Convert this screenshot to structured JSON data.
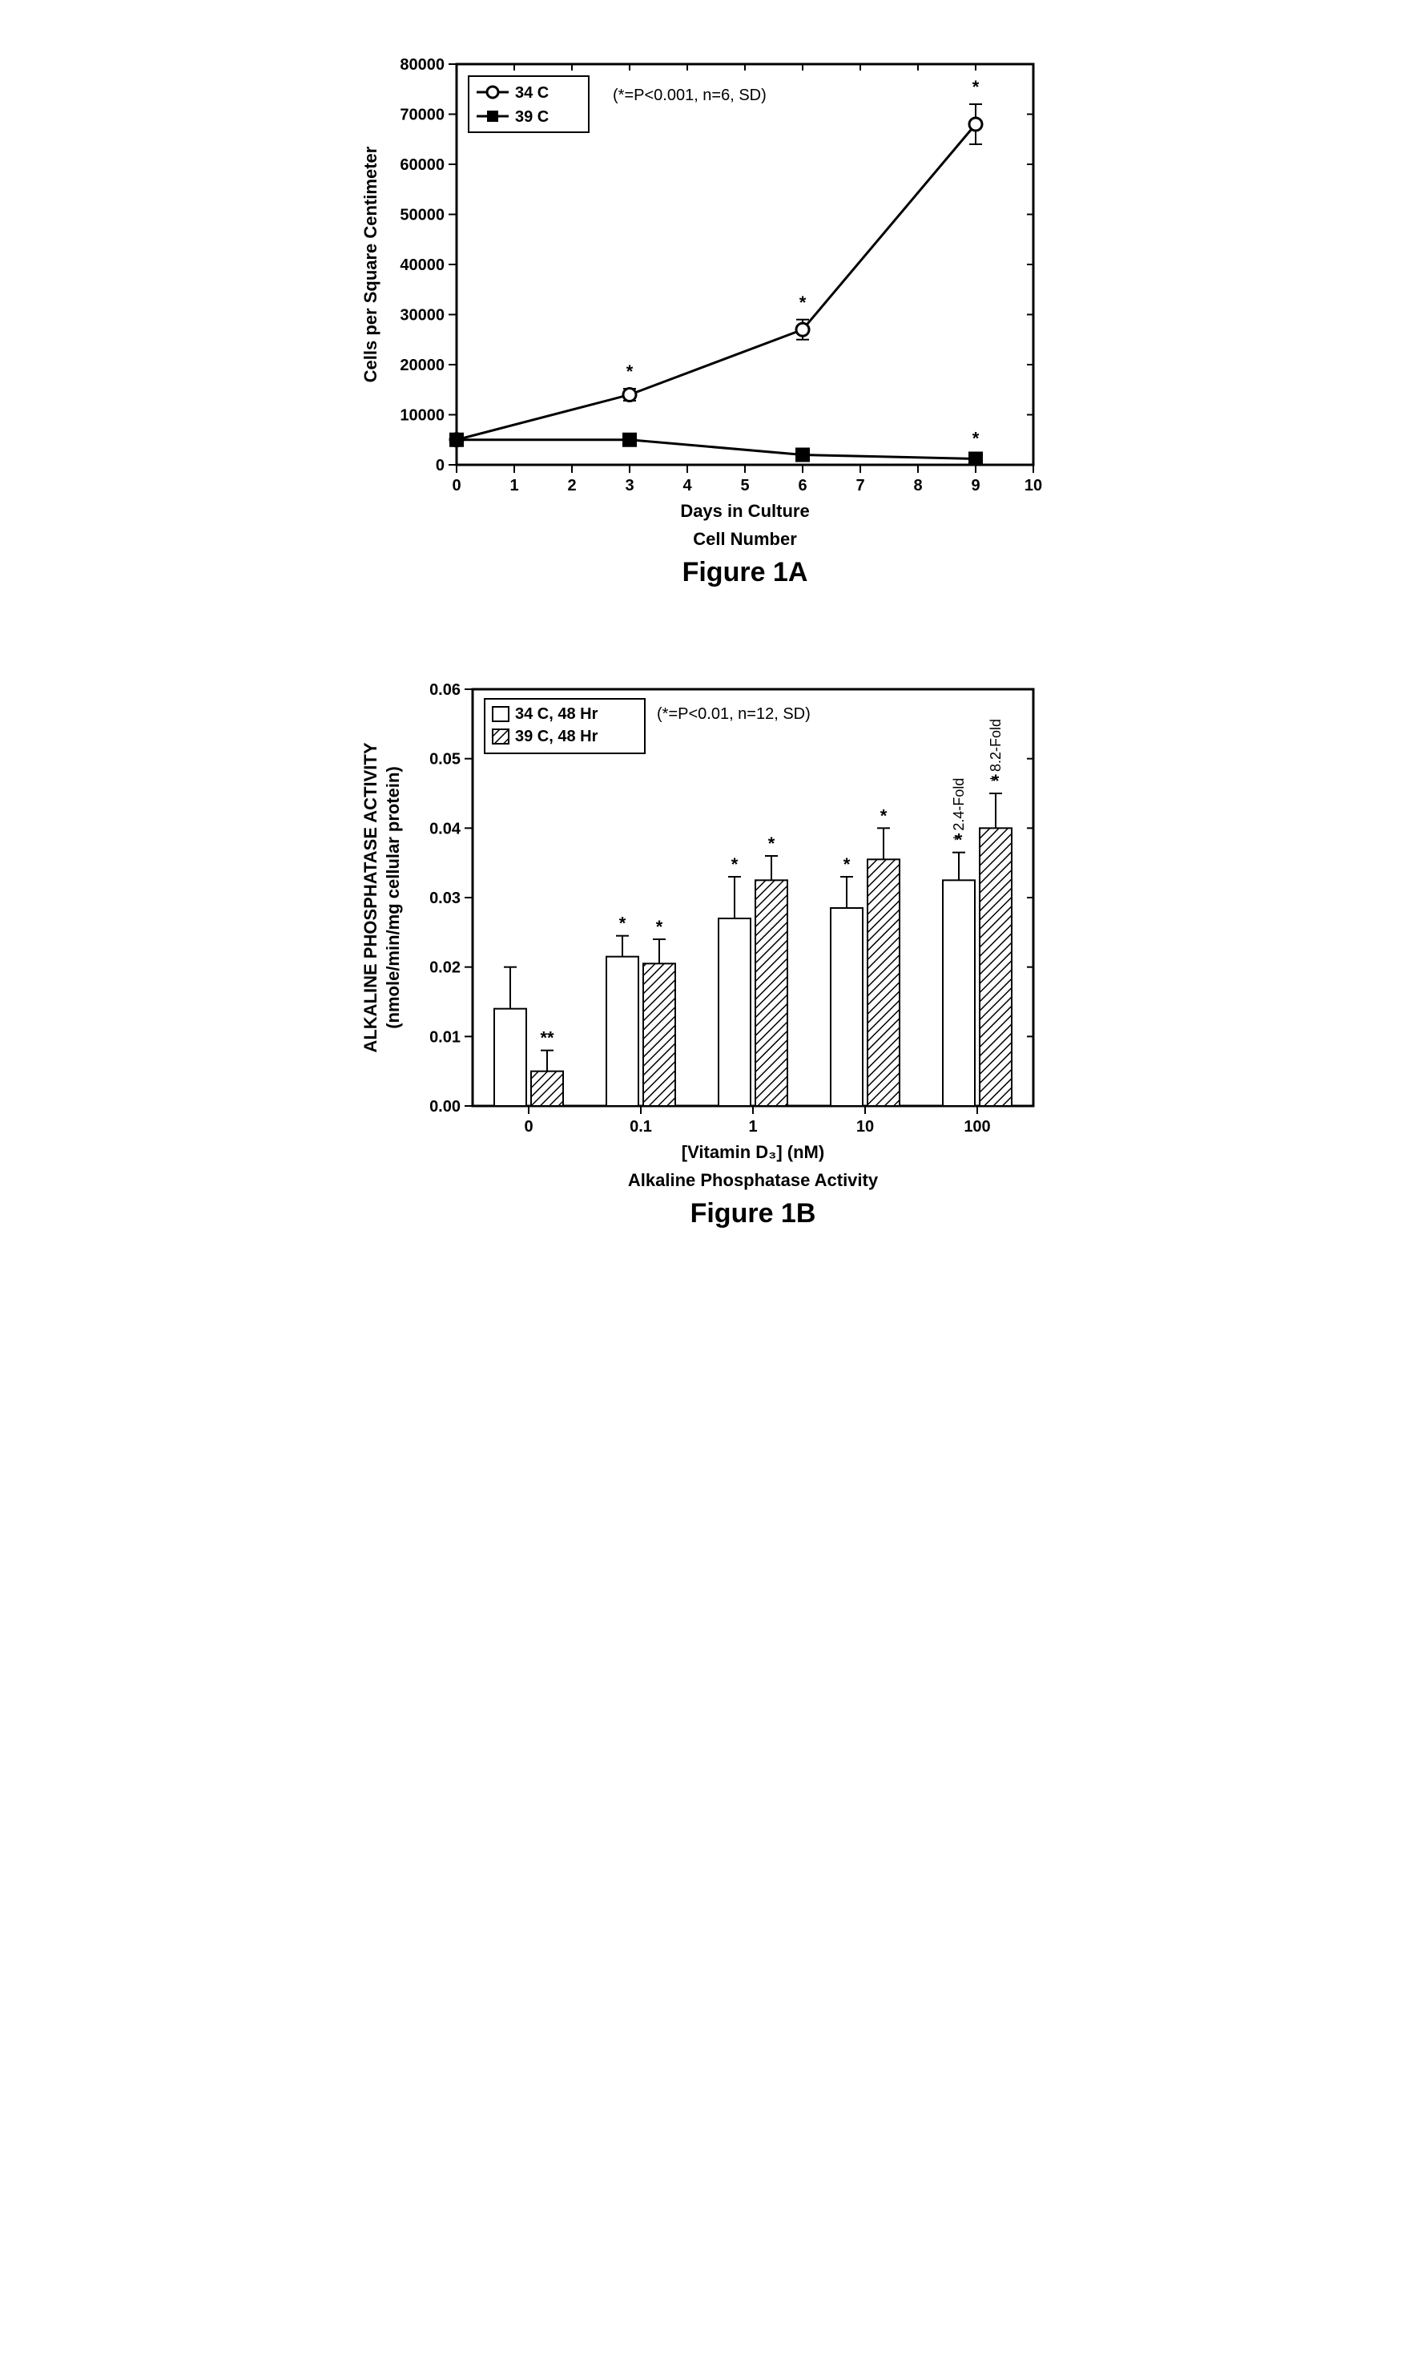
{
  "figureA": {
    "type": "line",
    "figure_label": "Figure 1A",
    "subtitle": "Cell Number",
    "xlabel": "Days in Culture",
    "ylabel": "Cells per Square Centimeter",
    "note": "(*=P<0.001, n=6, SD)",
    "xlim": [
      0,
      10
    ],
    "ylim": [
      0,
      80000
    ],
    "xticks": [
      0,
      1,
      2,
      3,
      4,
      5,
      6,
      7,
      8,
      9,
      10
    ],
    "yticks": [
      0,
      10000,
      20000,
      30000,
      40000,
      50000,
      60000,
      70000,
      80000
    ],
    "background_color": "#ffffff",
    "axis_color": "#000000",
    "line_width": 3,
    "series": [
      {
        "name": "34 C",
        "marker": "open-circle",
        "color": "#000000",
        "fill": "#ffffff",
        "points": [
          {
            "x": 0,
            "y": 5000,
            "err": 0,
            "star": false
          },
          {
            "x": 3,
            "y": 14000,
            "err": 1200,
            "star": true
          },
          {
            "x": 6,
            "y": 27000,
            "err": 2000,
            "star": true
          },
          {
            "x": 9,
            "y": 68000,
            "err": 4000,
            "star": true
          }
        ]
      },
      {
        "name": "39 C",
        "marker": "filled-square",
        "color": "#000000",
        "fill": "#000000",
        "points": [
          {
            "x": 0,
            "y": 5000,
            "err": 0,
            "star": false
          },
          {
            "x": 3,
            "y": 5000,
            "err": 0,
            "star": false
          },
          {
            "x": 6,
            "y": 2000,
            "err": 0,
            "star": false
          },
          {
            "x": 9,
            "y": 1200,
            "err": 0,
            "star": true
          }
        ]
      }
    ],
    "legend_items": [
      "34 C",
      "39 C"
    ]
  },
  "figureB": {
    "type": "bar",
    "figure_label": "Figure 1B",
    "subtitle": "Alkaline Phosphatase Activity",
    "xlabel": "[Vitamin D₃] (nM)",
    "ylabel_line1": "ALKALINE PHOSPHATASE ACTIVITY",
    "ylabel_line2": "(nmole/min/mg cellular protein)",
    "note": "(*=P<0.01, n=12, SD)",
    "categories": [
      "0",
      "0.1",
      "1",
      "10",
      "100"
    ],
    "ylim": [
      0,
      0.06
    ],
    "yticks": [
      0,
      0.01,
      0.02,
      0.03,
      0.04,
      0.05,
      0.06
    ],
    "background_color": "#ffffff",
    "axis_color": "#000000",
    "bar_border": "#000000",
    "bar_border_width": 2,
    "series": [
      {
        "name": "34 C, 48 Hr",
        "pattern": "none",
        "fill": "#ffffff",
        "values": [
          0.014,
          0.0215,
          0.027,
          0.0285,
          0.0325
        ],
        "errors": [
          0.006,
          0.003,
          0.006,
          0.0045,
          0.004
        ],
        "markers": [
          "",
          "*",
          "*",
          "*",
          "*"
        ],
        "fold_labels": [
          "",
          "",
          "",
          "",
          "2.4-Fold"
        ]
      },
      {
        "name": "39 C, 48 Hr",
        "pattern": "hatch",
        "fill": "#ffffff",
        "values": [
          0.005,
          0.0205,
          0.0325,
          0.0355,
          0.04
        ],
        "errors": [
          0.003,
          0.0035,
          0.0035,
          0.0045,
          0.005
        ],
        "markers": [
          "**",
          "*",
          "*",
          "*",
          "*"
        ],
        "fold_labels": [
          "",
          "",
          "",
          "",
          "8.2-Fold"
        ]
      }
    ],
    "legend_items": [
      "34 C, 48 Hr",
      "39 C, 48 Hr"
    ]
  }
}
